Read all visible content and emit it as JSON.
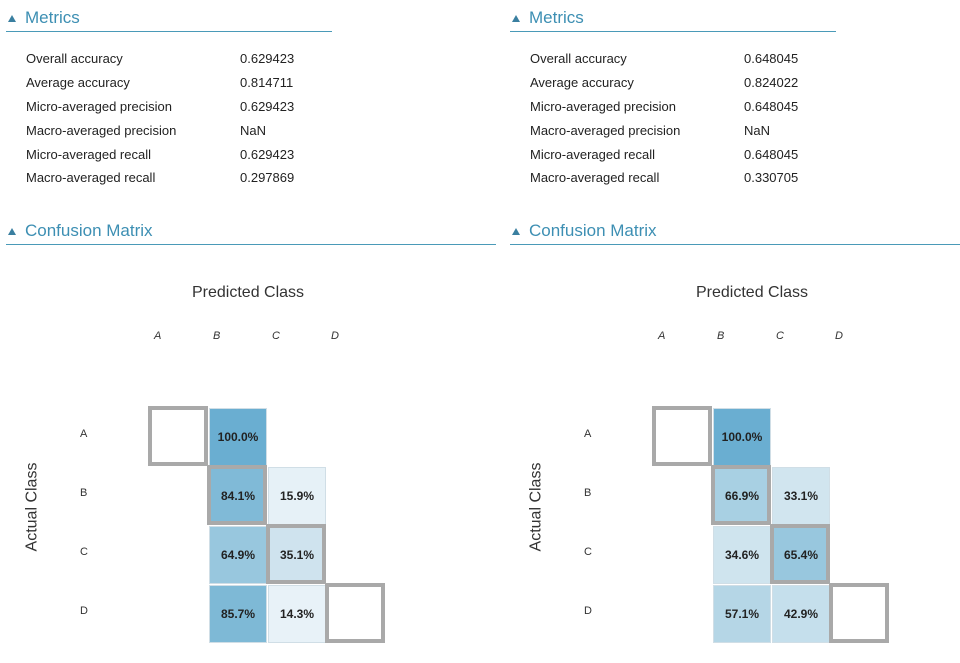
{
  "left": {
    "metrics_header": "Metrics",
    "metrics": [
      {
        "name": "Overall accuracy",
        "value": "0.629423"
      },
      {
        "name": "Average accuracy",
        "value": "0.814711"
      },
      {
        "name": "Micro-averaged precision",
        "value": "0.629423"
      },
      {
        "name": "Macro-averaged precision",
        "value": "NaN"
      },
      {
        "name": "Micro-averaged recall",
        "value": "0.629423"
      },
      {
        "name": "Macro-averaged recall",
        "value": "0.297869"
      }
    ],
    "cm_header": "Confusion Matrix",
    "predicted_title": "Predicted Class",
    "actual_title": "Actual Class",
    "classes": [
      "A",
      "B",
      "C",
      "D"
    ],
    "cells": [
      {
        "row": 0,
        "col": 1,
        "text": "100.0%",
        "value": 100.0,
        "color": "#6aaed1"
      },
      {
        "row": 1,
        "col": 1,
        "text": "84.1%",
        "value": 84.1,
        "color": "#80bad7"
      },
      {
        "row": 1,
        "col": 2,
        "text": "15.9%",
        "value": 15.9,
        "color": "#e6f1f7"
      },
      {
        "row": 2,
        "col": 1,
        "text": "64.9%",
        "value": 64.9,
        "color": "#98c7de"
      },
      {
        "row": 2,
        "col": 2,
        "text": "35.1%",
        "value": 35.1,
        "color": "#cfe3ee"
      },
      {
        "row": 3,
        "col": 1,
        "text": "85.7%",
        "value": 85.7,
        "color": "#7eb9d6"
      },
      {
        "row": 3,
        "col": 2,
        "text": "14.3%",
        "value": 14.3,
        "color": "#e8f2f8"
      }
    ]
  },
  "right": {
    "metrics_header": "Metrics",
    "metrics": [
      {
        "name": "Overall accuracy",
        "value": "0.648045"
      },
      {
        "name": "Average accuracy",
        "value": "0.824022"
      },
      {
        "name": "Micro-averaged precision",
        "value": "0.648045"
      },
      {
        "name": "Macro-averaged precision",
        "value": "NaN"
      },
      {
        "name": "Micro-averaged recall",
        "value": "0.648045"
      },
      {
        "name": "Macro-averaged recall",
        "value": "0.330705"
      }
    ],
    "cm_header": "Confusion Matrix",
    "predicted_title": "Predicted Class",
    "actual_title": "Actual Class",
    "classes": [
      "A",
      "B",
      "C",
      "D"
    ],
    "cells": [
      {
        "row": 0,
        "col": 1,
        "text": "100.0%",
        "value": 100.0,
        "color": "#6aaed1"
      },
      {
        "row": 1,
        "col": 1,
        "text": "66.9%",
        "value": 66.9,
        "color": "#a8d0e3"
      },
      {
        "row": 1,
        "col": 2,
        "text": "33.1%",
        "value": 33.1,
        "color": "#d1e5ef"
      },
      {
        "row": 2,
        "col": 1,
        "text": "34.6%",
        "value": 34.6,
        "color": "#cfe4ee"
      },
      {
        "row": 2,
        "col": 2,
        "text": "65.4%",
        "value": 65.4,
        "color": "#98c7de"
      },
      {
        "row": 3,
        "col": 1,
        "text": "57.1%",
        "value": 57.1,
        "color": "#b5d6e6"
      },
      {
        "row": 3,
        "col": 2,
        "text": "42.9%",
        "value": 42.9,
        "color": "#c5dfec"
      }
    ]
  }
}
